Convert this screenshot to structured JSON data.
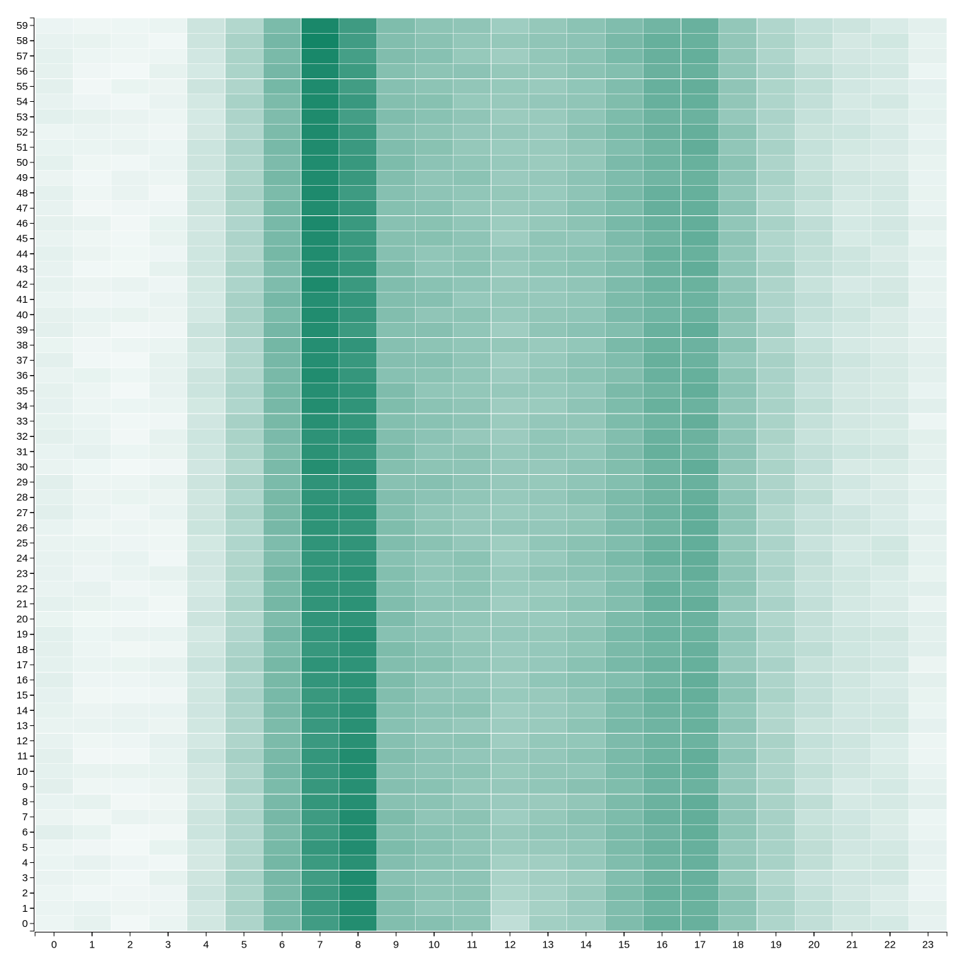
{
  "chart_data": {
    "type": "heatmap",
    "title": "",
    "xlabel": "",
    "ylabel": "",
    "x_categories": [
      "0",
      "1",
      "2",
      "3",
      "4",
      "5",
      "6",
      "7",
      "8",
      "9",
      "10",
      "11",
      "12",
      "13",
      "14",
      "15",
      "16",
      "17",
      "18",
      "19",
      "20",
      "21",
      "22",
      "23"
    ],
    "y_categories": [
      "0",
      "1",
      "2",
      "3",
      "4",
      "5",
      "6",
      "7",
      "8",
      "9",
      "10",
      "11",
      "12",
      "13",
      "14",
      "15",
      "16",
      "17",
      "18",
      "19",
      "20",
      "21",
      "22",
      "23",
      "24",
      "25",
      "26",
      "27",
      "28",
      "29",
      "30",
      "31",
      "32",
      "33",
      "34",
      "35",
      "36",
      "37",
      "38",
      "39",
      "40",
      "41",
      "42",
      "43",
      "44",
      "45",
      "46",
      "47",
      "48",
      "49",
      "50",
      "51",
      "52",
      "53",
      "54",
      "55",
      "56",
      "57",
      "58",
      "59"
    ],
    "value_range": [
      0,
      1
    ],
    "color_low": "#f2f8f7",
    "color_high": "#0a8060",
    "column_profile": [
      0.05,
      0.03,
      0.02,
      0.03,
      0.15,
      0.3,
      0.52,
      0.82,
      0.8,
      0.48,
      0.44,
      0.42,
      0.38,
      0.4,
      0.43,
      0.5,
      0.58,
      0.6,
      0.42,
      0.3,
      0.2,
      0.14,
      0.12,
      0.05
    ],
    "row_adjustments": {
      "note": "",
      "col7_top_boost": 0.12,
      "col8_bottom_boost": 0.1,
      "col12_bottom_reduction": 0.15
    },
    "grid": false,
    "legend": "none"
  }
}
